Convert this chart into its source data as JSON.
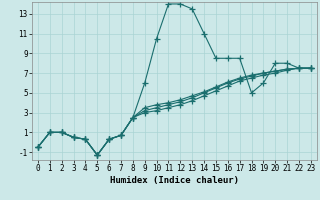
{
  "title": "",
  "xlabel": "Humidex (Indice chaleur)",
  "bg_color": "#cce8e8",
  "line_color": "#1a6e6e",
  "xlim": [
    -0.5,
    23.5
  ],
  "ylim": [
    -1.8,
    14.2
  ],
  "xticks": [
    0,
    1,
    2,
    3,
    4,
    5,
    6,
    7,
    8,
    9,
    10,
    11,
    12,
    13,
    14,
    15,
    16,
    17,
    18,
    19,
    20,
    21,
    22,
    23
  ],
  "yticks": [
    -1,
    1,
    3,
    5,
    7,
    9,
    11,
    13
  ],
  "lines": [
    {
      "x": [
        0,
        1,
        2,
        3,
        4,
        5,
        6,
        7,
        8,
        9,
        10,
        11,
        12,
        13,
        14,
        15,
        16,
        17,
        18,
        19,
        20,
        21,
        22,
        23
      ],
      "y": [
        -0.5,
        1,
        1,
        0.5,
        0.3,
        -1.3,
        0.3,
        0.7,
        2.5,
        6.0,
        10.5,
        14.0,
        14.0,
        13.5,
        11.0,
        8.5,
        8.5,
        8.5,
        5.0,
        6.0,
        8.0,
        8.0,
        7.5,
        7.5
      ]
    },
    {
      "x": [
        0,
        1,
        2,
        3,
        4,
        5,
        6,
        7,
        8,
        9,
        10,
        11,
        12,
        13,
        14,
        15,
        16,
        17,
        18,
        19,
        20,
        21,
        22,
        23
      ],
      "y": [
        -0.5,
        1,
        1,
        0.5,
        0.3,
        -1.3,
        0.3,
        0.7,
        2.5,
        3.0,
        3.2,
        3.5,
        3.8,
        4.2,
        4.7,
        5.2,
        5.7,
        6.2,
        6.5,
        6.8,
        7.0,
        7.3,
        7.5,
        7.5
      ]
    },
    {
      "x": [
        0,
        1,
        2,
        3,
        4,
        5,
        6,
        7,
        8,
        9,
        10,
        11,
        12,
        13,
        14,
        15,
        16,
        17,
        18,
        19,
        20,
        21,
        22,
        23
      ],
      "y": [
        -0.5,
        1,
        1,
        0.5,
        0.3,
        -1.3,
        0.3,
        0.7,
        2.5,
        3.2,
        3.5,
        3.8,
        4.1,
        4.5,
        5.0,
        5.5,
        6.0,
        6.4,
        6.7,
        7.0,
        7.2,
        7.4,
        7.5,
        7.5
      ]
    },
    {
      "x": [
        0,
        1,
        2,
        3,
        4,
        5,
        6,
        7,
        8,
        9,
        10,
        11,
        12,
        13,
        14,
        15,
        16,
        17,
        18,
        19,
        20,
        21,
        22,
        23
      ],
      "y": [
        -0.5,
        1,
        1,
        0.5,
        0.3,
        -1.3,
        0.3,
        0.7,
        2.5,
        3.5,
        3.8,
        4.0,
        4.3,
        4.7,
        5.1,
        5.6,
        6.1,
        6.5,
        6.8,
        7.0,
        7.2,
        7.4,
        7.5,
        7.5
      ]
    }
  ],
  "grid_color": "#aad4d4",
  "tick_fontsize": 5.5,
  "xlabel_fontsize": 6.5
}
